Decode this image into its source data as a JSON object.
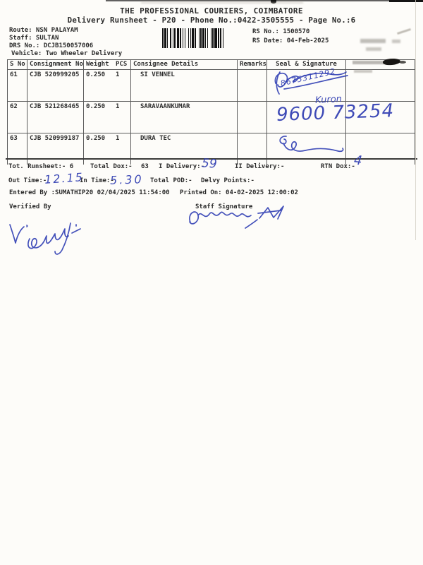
{
  "header": {
    "title": "THE PROFESSIONAL COURIERS, COIMBATORE",
    "subtitle": "Delivery Runsheet - P20 - Phone No.:0422-3505555 - Page No.:6"
  },
  "info": {
    "route": "Route: NSN PALAYAM",
    "staff": "Staff: SULTAN",
    "drs": "DRS No.: DCJB150057006",
    "vehicle": "Vehicle: Two Wheeler Delivery",
    "rs_no": "RS No.: 1500570",
    "rs_date": "RS Date: 04-Feb-2025"
  },
  "table": {
    "headers": {
      "s_no": "S No",
      "consignment": "Consignment No",
      "weight": "Weight",
      "pcs": "PCS",
      "consignee": "Consignee Details",
      "remarks": "Remarks",
      "seal": "Seal & Signature"
    },
    "rows": [
      {
        "s_no": "61",
        "consignment": "CJB 520999205",
        "weight": "0.250",
        "pcs": "1",
        "consignee": "SI VENNEL",
        "remarks": ""
      },
      {
        "s_no": "62",
        "consignment": "CJB 521268465",
        "weight": "0.250",
        "pcs": "1",
        "consignee": "SARAVAANKUMAR",
        "remarks": ""
      },
      {
        "s_no": "63",
        "consignment": "CJB 520999187",
        "weight": "0.250",
        "pcs": "1",
        "consignee": "DURA TEC",
        "remarks": ""
      }
    ]
  },
  "totals": {
    "runsheet": "Tot. Runsheet:- 6",
    "total_dox": "Total Dox:-",
    "total_dox_value": "63",
    "i_delivery": "I Delivery:-",
    "ii_delivery": "II Delivery:-",
    "rtn_dox": "RTN Dox:-"
  },
  "times": {
    "out": "Out Time:-",
    "in": "In Time:-",
    "pod": "Total POD:-",
    "delvy": "Delvy Points:-"
  },
  "footer": {
    "entered_by": "Entered By :SUMATHIP20 02/04/2025 11:54:00",
    "printed_on": "Printed On: 04-02-2025 12:00:02",
    "verified_by": "Verified By",
    "staff_signature": "Staff Signature"
  },
  "handwriting": {
    "row61_phone": "8675311292",
    "row62_name": "Kuron",
    "row62_phone": "9600 73254",
    "i_delivery": "59",
    "rtn_dox": "4",
    "out_time": "12.15",
    "in_time": "5.30"
  },
  "colors": {
    "ink": "#2b2b2b",
    "pen": "#2f3db2",
    "table_line": "#5b5b5b"
  }
}
